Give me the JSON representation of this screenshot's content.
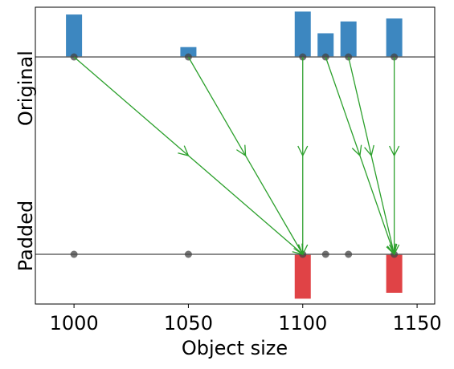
{
  "chart_data": {
    "type": "mapping",
    "xlabel": "Object size",
    "row_labels": [
      "Original",
      "Padded"
    ],
    "x": [
      1000,
      1050,
      1100,
      1110,
      1120,
      1140
    ],
    "original_counts": [
      0.215,
      0.05,
      0.23,
      0.12,
      0.18,
      0.195
    ],
    "padded_to": [
      1100,
      1100,
      1100,
      1140,
      1140,
      1140
    ],
    "padded_x": [
      1100,
      1140
    ],
    "padded_counts": [
      0.225,
      0.195
    ],
    "xlim": [
      983.1,
      1157.7
    ],
    "xticks": [
      1000,
      1050,
      1100,
      1150
    ],
    "original_color": "#3d87c0",
    "padded_color": "#e04346",
    "arrow_color": "#2ca02c"
  }
}
